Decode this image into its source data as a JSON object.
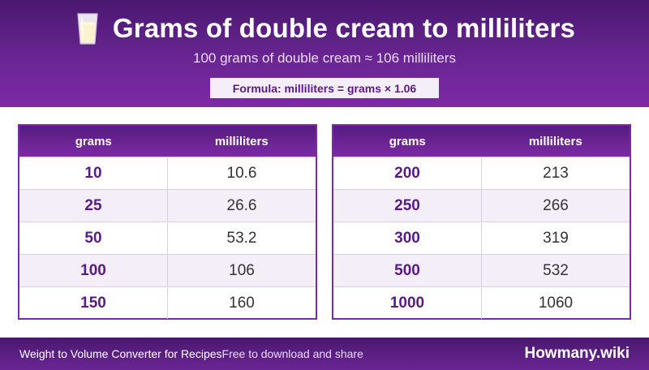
{
  "header": {
    "title": "Grams of double cream to milliliters",
    "subtitle": "100 grams of double cream ≈ 106 milliliters",
    "formula": "Formula: milliliters = grams × 1.06",
    "icon": "glass-of-milk-icon"
  },
  "columns": {
    "grams": "grams",
    "milliliters": "milliliters"
  },
  "table_left": {
    "rows": [
      {
        "grams": "10",
        "ml": "10.6"
      },
      {
        "grams": "25",
        "ml": "26.6"
      },
      {
        "grams": "50",
        "ml": "53.2"
      },
      {
        "grams": "100",
        "ml": "106"
      },
      {
        "grams": "150",
        "ml": "160"
      }
    ]
  },
  "table_right": {
    "rows": [
      {
        "grams": "200",
        "ml": "213"
      },
      {
        "grams": "250",
        "ml": "266"
      },
      {
        "grams": "300",
        "ml": "319"
      },
      {
        "grams": "500",
        "ml": "532"
      },
      {
        "grams": "1000",
        "ml": "1060"
      }
    ]
  },
  "footer": {
    "left_text": "Weight to Volume Converter for Recipes",
    "share_text": "Free to download and share",
    "brand": "Howmany.wiki"
  },
  "colors": {
    "brand_purple": "#6a2593",
    "accent_purple": "#5a1a85",
    "row_alt": "#f3eef7"
  }
}
